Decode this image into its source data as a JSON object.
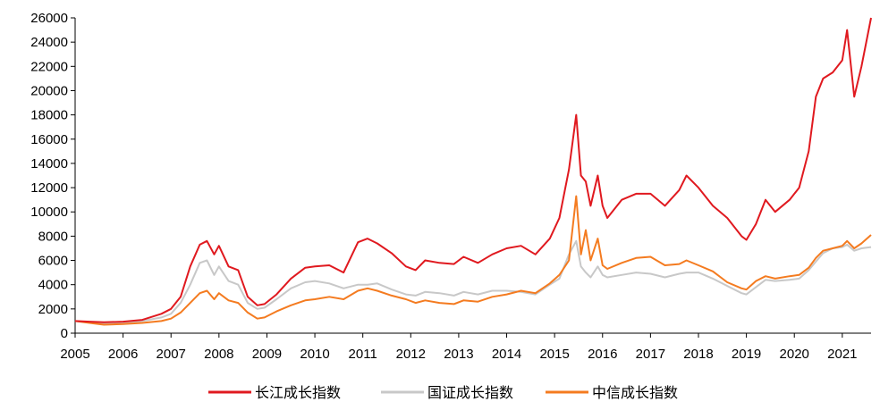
{
  "chart_data": {
    "type": "line",
    "title": "",
    "xlabel": "",
    "ylabel": "",
    "ylim": [
      0,
      26000
    ],
    "xlim": [
      2005,
      2021.6
    ],
    "y_ticks": [
      "0",
      "2000",
      "4000",
      "6000",
      "8000",
      "10000",
      "12000",
      "14000",
      "16000",
      "18000",
      "20000",
      "22000",
      "24000",
      "26000"
    ],
    "x_ticks": [
      "2005",
      "2006",
      "2007",
      "2008",
      "2009",
      "2010",
      "2011",
      "2012",
      "2013",
      "2014",
      "2015",
      "2016",
      "2017",
      "2018",
      "2019",
      "2020",
      "2021"
    ],
    "grid": false,
    "legend_position": "bottom-center",
    "series": [
      {
        "name": "长江成长指数",
        "color": "#e0191f",
        "x": [
          2005.0,
          2005.3,
          2005.6,
          2006.0,
          2006.4,
          2006.8,
          2007.0,
          2007.2,
          2007.4,
          2007.6,
          2007.75,
          2007.9,
          2008.0,
          2008.2,
          2008.4,
          2008.6,
          2008.8,
          2008.95,
          2009.2,
          2009.5,
          2009.8,
          2010.0,
          2010.3,
          2010.6,
          2010.9,
          2011.1,
          2011.3,
          2011.6,
          2011.9,
          2012.1,
          2012.3,
          2012.6,
          2012.9,
          2013.1,
          2013.4,
          2013.7,
          2014.0,
          2014.3,
          2014.6,
          2014.9,
          2015.1,
          2015.3,
          2015.45,
          2015.55,
          2015.65,
          2015.75,
          2015.9,
          2016.0,
          2016.1,
          2016.4,
          2016.7,
          2017.0,
          2017.3,
          2017.6,
          2017.75,
          2018.0,
          2018.3,
          2018.6,
          2018.9,
          2019.0,
          2019.2,
          2019.4,
          2019.6,
          2019.9,
          2020.1,
          2020.3,
          2020.45,
          2020.6,
          2020.8,
          2021.0,
          2021.1,
          2021.25,
          2021.4,
          2021.6
        ],
        "values": [
          1000,
          950,
          900,
          950,
          1100,
          1600,
          2000,
          3000,
          5500,
          7300,
          7600,
          6500,
          7200,
          5500,
          5200,
          3000,
          2300,
          2400,
          3200,
          4500,
          5400,
          5500,
          5600,
          5000,
          7500,
          7800,
          7400,
          6600,
          5500,
          5200,
          6000,
          5800,
          5700,
          6300,
          5800,
          6500,
          7000,
          7200,
          6500,
          7800,
          9500,
          13500,
          18000,
          13000,
          12500,
          10500,
          13000,
          10500,
          9500,
          11000,
          11500,
          11500,
          10500,
          11800,
          13000,
          12000,
          10500,
          9500,
          8000,
          7700,
          9000,
          11000,
          10000,
          11000,
          12000,
          15000,
          19500,
          21000,
          21500,
          22500,
          25000,
          19500,
          22000,
          26000
        ]
      },
      {
        "name": "国证成长指数",
        "color": "#c8c8c8",
        "x": [
          2005.0,
          2005.3,
          2005.6,
          2006.0,
          2006.4,
          2006.8,
          2007.0,
          2007.2,
          2007.4,
          2007.6,
          2007.75,
          2007.9,
          2008.0,
          2008.2,
          2008.4,
          2008.6,
          2008.8,
          2008.95,
          2009.2,
          2009.5,
          2009.8,
          2010.0,
          2010.3,
          2010.6,
          2010.9,
          2011.1,
          2011.3,
          2011.6,
          2011.9,
          2012.1,
          2012.3,
          2012.6,
          2012.9,
          2013.1,
          2013.4,
          2013.7,
          2014.0,
          2014.3,
          2014.6,
          2014.9,
          2015.1,
          2015.3,
          2015.45,
          2015.55,
          2015.65,
          2015.75,
          2015.9,
          2016.0,
          2016.1,
          2016.4,
          2016.7,
          2017.0,
          2017.3,
          2017.6,
          2017.75,
          2018.0,
          2018.3,
          2018.6,
          2018.9,
          2019.0,
          2019.2,
          2019.4,
          2019.6,
          2019.9,
          2020.1,
          2020.3,
          2020.45,
          2020.6,
          2020.8,
          2021.0,
          2021.1,
          2021.25,
          2021.4,
          2021.6
        ],
        "values": [
          1000,
          900,
          800,
          850,
          1000,
          1300,
          1600,
          2500,
          4000,
          5800,
          6000,
          4800,
          5500,
          4300,
          4000,
          2500,
          2000,
          2100,
          2800,
          3700,
          4200,
          4300,
          4100,
          3700,
          4000,
          4000,
          4100,
          3600,
          3200,
          3100,
          3400,
          3300,
          3100,
          3400,
          3200,
          3500,
          3500,
          3400,
          3200,
          4000,
          4500,
          6500,
          7600,
          5500,
          5000,
          4600,
          5500,
          4800,
          4600,
          4800,
          5000,
          4900,
          4600,
          4900,
          5000,
          5000,
          4500,
          3900,
          3300,
          3200,
          3800,
          4400,
          4300,
          4400,
          4500,
          5200,
          5900,
          6600,
          7000,
          7100,
          7300,
          6800,
          7000,
          7100
        ]
      },
      {
        "name": "中信成长指数",
        "color": "#f47b20",
        "x": [
          2005.0,
          2005.3,
          2005.6,
          2006.0,
          2006.4,
          2006.8,
          2007.0,
          2007.2,
          2007.4,
          2007.6,
          2007.75,
          2007.9,
          2008.0,
          2008.2,
          2008.4,
          2008.6,
          2008.8,
          2008.95,
          2009.2,
          2009.5,
          2009.8,
          2010.0,
          2010.3,
          2010.6,
          2010.9,
          2011.1,
          2011.3,
          2011.6,
          2011.9,
          2012.1,
          2012.3,
          2012.6,
          2012.9,
          2013.1,
          2013.4,
          2013.7,
          2014.0,
          2014.3,
          2014.6,
          2014.9,
          2015.1,
          2015.3,
          2015.45,
          2015.55,
          2015.65,
          2015.75,
          2015.9,
          2016.0,
          2016.1,
          2016.4,
          2016.7,
          2017.0,
          2017.3,
          2017.6,
          2017.75,
          2018.0,
          2018.3,
          2018.6,
          2018.9,
          2019.0,
          2019.2,
          2019.4,
          2019.6,
          2019.9,
          2020.1,
          2020.3,
          2020.45,
          2020.6,
          2020.8,
          2021.0,
          2021.1,
          2021.25,
          2021.4,
          2021.6
        ],
        "values": [
          1000,
          850,
          700,
          750,
          850,
          1000,
          1200,
          1700,
          2500,
          3300,
          3500,
          2800,
          3300,
          2700,
          2500,
          1700,
          1200,
          1300,
          1800,
          2300,
          2700,
          2800,
          3000,
          2800,
          3500,
          3700,
          3500,
          3100,
          2800,
          2500,
          2700,
          2500,
          2400,
          2700,
          2600,
          3000,
          3200,
          3500,
          3300,
          4100,
          4800,
          6000,
          11300,
          6500,
          8500,
          6000,
          7800,
          5600,
          5300,
          5800,
          6200,
          6300,
          5600,
          5700,
          6000,
          5600,
          5100,
          4200,
          3700,
          3600,
          4300,
          4700,
          4500,
          4700,
          4800,
          5400,
          6200,
          6800,
          7000,
          7200,
          7600,
          7000,
          7400,
          8100
        ]
      }
    ]
  }
}
